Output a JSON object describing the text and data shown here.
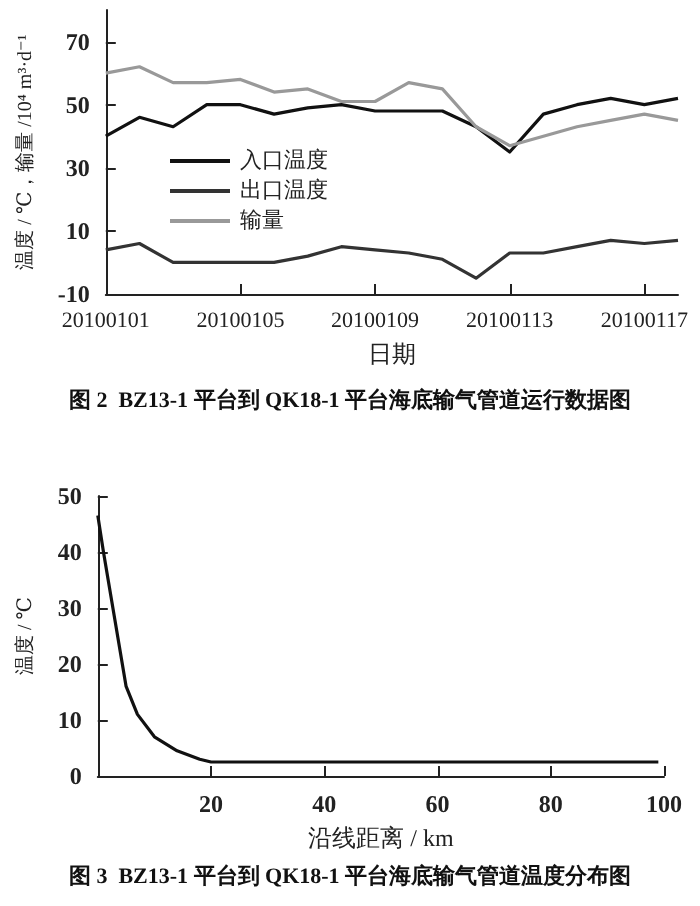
{
  "chart_data": [
    {
      "type": "line",
      "title": "图 2  BZ13-1 平台到 QK18-1 平台海底输气管道运行数据图",
      "xlabel": "日期",
      "ylabel": "温度 / ℃，输量 /10⁴ m³·d⁻¹",
      "categories": [
        "20100101",
        null,
        null,
        null,
        "20100105",
        null,
        null,
        null,
        "20100109",
        null,
        null,
        null,
        "20100113",
        null,
        null,
        null,
        "20100117",
        null
      ],
      "series": [
        {
          "name": "入口温度",
          "color": "#111111",
          "values": [
            40,
            46,
            43,
            50,
            50,
            47,
            49,
            50,
            48,
            48,
            48,
            43,
            35,
            47,
            50,
            52,
            50,
            52
          ]
        },
        {
          "name": "出口温度",
          "color": "#333333",
          "values": [
            4,
            6,
            0,
            0,
            0,
            0,
            2,
            5,
            4,
            3,
            1,
            -5,
            3,
            3,
            5,
            7,
            6,
            7
          ]
        },
        {
          "name": "输量",
          "color": "#999999",
          "values": [
            60,
            62,
            57,
            57,
            58,
            54,
            55,
            51,
            51,
            57,
            55,
            43,
            37,
            40,
            43,
            45,
            47,
            45
          ]
        }
      ],
      "ylim": [
        -10,
        80
      ],
      "yticks": [
        -10,
        10,
        30,
        50,
        70
      ],
      "legend": "center left",
      "marker": "none"
    },
    {
      "type": "line",
      "title": "图 3  BZ13-1 平台到 QK18-1 平台海底输气管道温度分布图",
      "xlabel": "沿线距离 / km",
      "ylabel": "温度 / ℃",
      "x": [
        0,
        1,
        3,
        5,
        7,
        10,
        14,
        18,
        20,
        40,
        60,
        80,
        99
      ],
      "series": [
        {
          "color": "#111111",
          "values": [
            46.5,
            40,
            28,
            16,
            11,
            7,
            4.5,
            3,
            2.5,
            2.5,
            2.5,
            2.5,
            2.5
          ]
        }
      ],
      "xlim": [
        0,
        100
      ],
      "xticks": [
        20,
        40,
        60,
        80,
        100
      ],
      "ylim": [
        0,
        50
      ],
      "yticks": [
        0,
        10,
        20,
        30,
        40,
        50
      ],
      "marker": "none"
    }
  ]
}
